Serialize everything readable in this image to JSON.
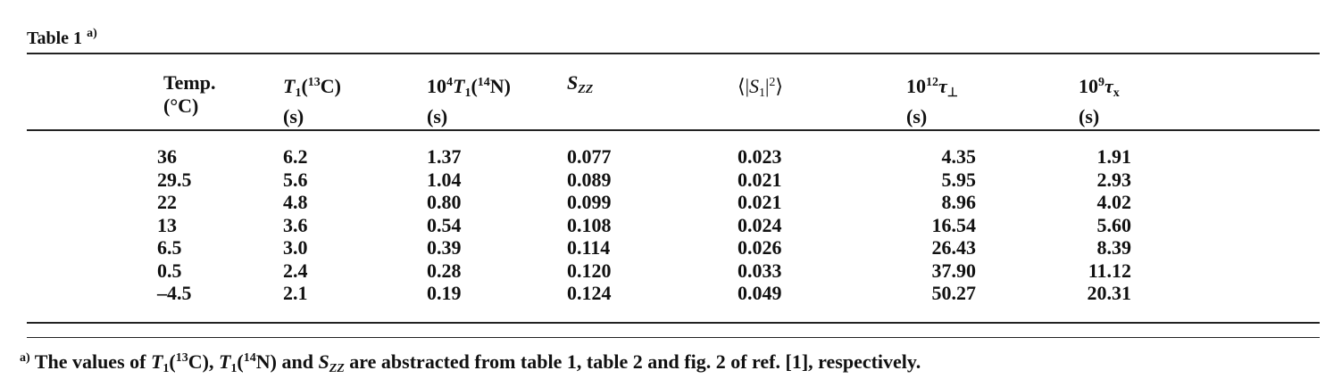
{
  "caption": {
    "label": "Table 1",
    "mark": "a)"
  },
  "header": [
    {
      "line1": [
        "Temp."
      ],
      "line2": "(°C)"
    },
    {
      "line1": [
        "T",
        "1",
        "(",
        "13",
        "C)"
      ],
      "line2": "(s)"
    },
    {
      "line1": [
        "10",
        "4",
        "T",
        "1",
        "(",
        "14",
        "N)"
      ],
      "line2": "(s)"
    },
    {
      "line1": [
        "S",
        "ZZ"
      ]
    },
    {
      "line1": [
        "⟨|",
        "S",
        "1",
        "|",
        "2",
        "⟩"
      ]
    },
    {
      "line1": [
        "10",
        "12",
        "τ",
        "⊥"
      ],
      "line2": "(s)"
    },
    {
      "line1": [
        "10",
        "9",
        "τ",
        "x"
      ],
      "line2": "(s)"
    }
  ],
  "rows": [
    [
      "36",
      "6.2",
      "1.37",
      "0.077",
      "0.023",
      "4.35",
      "1.91"
    ],
    [
      "29.5",
      "5.6",
      "1.04",
      "0.089",
      "0.021",
      "5.95",
      "2.93"
    ],
    [
      "22",
      "4.8",
      "0.80",
      "0.099",
      "0.021",
      "8.96",
      "4.02"
    ],
    [
      "13",
      "3.6",
      "0.54",
      "0.108",
      "0.024",
      "16.54",
      "5.60"
    ],
    [
      "6.5",
      "3.0",
      "0.39",
      "0.114",
      "0.026",
      "26.43",
      "8.39"
    ],
    [
      "0.5",
      "2.4",
      "0.28",
      "0.120",
      "0.033",
      "37.90",
      "11.12"
    ],
    [
      "–4.5",
      "2.1",
      "0.19",
      "0.124",
      "0.049",
      "50.27",
      "20.31"
    ]
  ],
  "footnote": [
    "a)",
    "The values of ",
    "T",
    "1",
    "(",
    "13",
    "C), ",
    "T",
    "1",
    "(",
    "14",
    "N) and ",
    "S",
    "ZZ",
    " are abstracted from table 1, table 2 and fig. 2 of ref. [1], respectively."
  ]
}
